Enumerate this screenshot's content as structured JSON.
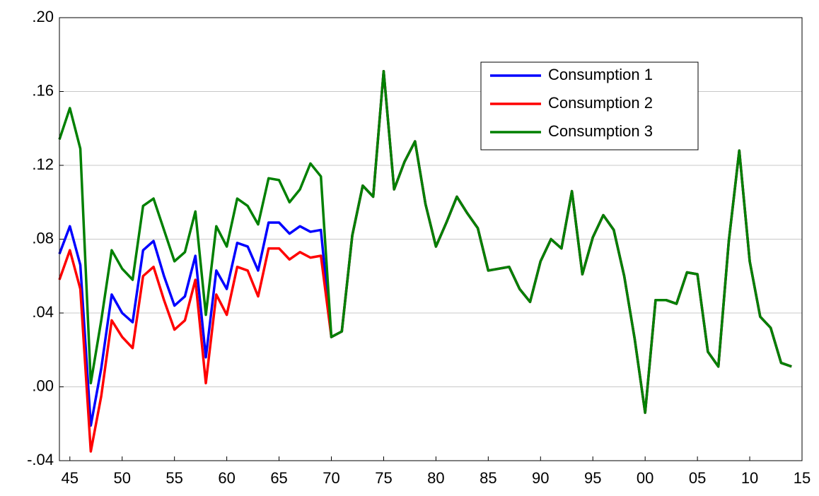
{
  "chart_data": {
    "type": "line",
    "categories": [
      null,
      "45",
      null,
      null,
      null,
      null,
      "50",
      null,
      null,
      null,
      null,
      "55",
      null,
      null,
      null,
      null,
      "60",
      null,
      null,
      null,
      null,
      "65",
      null,
      null,
      null,
      null,
      "70",
      null,
      null,
      null,
      null,
      "75",
      null,
      null,
      null,
      null,
      "80",
      null,
      null,
      null,
      null,
      "85",
      null,
      null,
      null,
      null,
      "90",
      null,
      null,
      null,
      null,
      "95",
      null,
      null,
      null,
      null,
      "00",
      null,
      null,
      null,
      null,
      "05",
      null,
      null,
      null,
      null,
      "10",
      null,
      null,
      null,
      null,
      "15"
    ],
    "series": [
      {
        "name": "Consumption 1",
        "color": "#0000ff",
        "values": [
          0.072,
          0.087,
          0.066,
          -0.021,
          0.01,
          0.05,
          0.04,
          0.035,
          0.074,
          0.079,
          0.06,
          0.044,
          0.049,
          0.071,
          0.016,
          0.063,
          0.053,
          0.078,
          0.076,
          0.063,
          0.089,
          0.089,
          0.083,
          0.087,
          0.084,
          0.085,
          0.027,
          0.03,
          0.082,
          0.109,
          0.103,
          0.171,
          0.107,
          0.122,
          0.133,
          0.099,
          0.076,
          0.089,
          0.103,
          0.094,
          0.086,
          0.063,
          0.064,
          0.065,
          0.053,
          0.046,
          0.068,
          0.08,
          0.075,
          0.106,
          0.061,
          0.081,
          0.093,
          0.085,
          0.06,
          0.026,
          -0.014,
          0.047,
          0.047,
          0.045,
          0.062,
          0.061,
          0.019,
          0.011,
          0.079,
          0.128,
          0.068,
          0.038,
          0.032,
          0.013,
          0.011,
          null
        ]
      },
      {
        "name": "Consumption 2",
        "color": "#ff0000",
        "values": [
          0.058,
          0.074,
          0.053,
          -0.035,
          -0.005,
          0.036,
          0.027,
          0.021,
          0.06,
          0.065,
          0.047,
          0.031,
          0.036,
          0.058,
          0.002,
          0.05,
          0.039,
          0.065,
          0.063,
          0.049,
          0.075,
          0.075,
          0.069,
          0.073,
          0.07,
          0.071,
          0.027,
          0.03,
          0.082,
          0.109,
          0.103,
          0.171,
          0.107,
          0.122,
          0.133,
          0.099,
          0.076,
          0.089,
          0.103,
          0.094,
          0.086,
          0.063,
          0.064,
          0.065,
          0.053,
          0.046,
          0.068,
          0.08,
          0.075,
          0.106,
          0.061,
          0.081,
          0.093,
          0.085,
          0.06,
          0.026,
          -0.014,
          0.047,
          0.047,
          0.045,
          0.062,
          0.061,
          0.019,
          0.011,
          0.079,
          0.128,
          0.068,
          0.038,
          0.032,
          0.013,
          0.011,
          null
        ]
      },
      {
        "name": "Consumption 3",
        "color": "#008000",
        "values": [
          0.134,
          0.151,
          0.129,
          0.002,
          0.036,
          0.074,
          0.064,
          0.058,
          0.098,
          0.102,
          0.085,
          0.068,
          0.073,
          0.095,
          0.039,
          0.087,
          0.076,
          0.102,
          0.098,
          0.088,
          0.113,
          0.112,
          0.1,
          0.107,
          0.121,
          0.114,
          0.027,
          0.03,
          0.082,
          0.109,
          0.103,
          0.171,
          0.107,
          0.122,
          0.133,
          0.099,
          0.076,
          0.089,
          0.103,
          0.094,
          0.086,
          0.063,
          0.064,
          0.065,
          0.053,
          0.046,
          0.068,
          0.08,
          0.075,
          0.106,
          0.061,
          0.081,
          0.093,
          0.085,
          0.06,
          0.026,
          -0.014,
          0.047,
          0.047,
          0.045,
          0.062,
          0.061,
          0.019,
          0.011,
          0.079,
          0.128,
          0.068,
          0.038,
          0.032,
          0.013,
          0.011,
          null
        ]
      }
    ],
    "ylim": [
      -0.04,
      0.2
    ],
    "yticks": [
      {
        "value": -0.04,
        "label": "-.04"
      },
      {
        "value": 0,
        "label": ".00"
      },
      {
        "value": 0.04,
        "label": ".04"
      },
      {
        "value": 0.08,
        "label": ".08"
      },
      {
        "value": 0.12,
        "label": ".12"
      },
      {
        "value": 0.16,
        "label": ".16"
      },
      {
        "value": 0.2,
        "label": ".20"
      }
    ],
    "grid": true
  }
}
